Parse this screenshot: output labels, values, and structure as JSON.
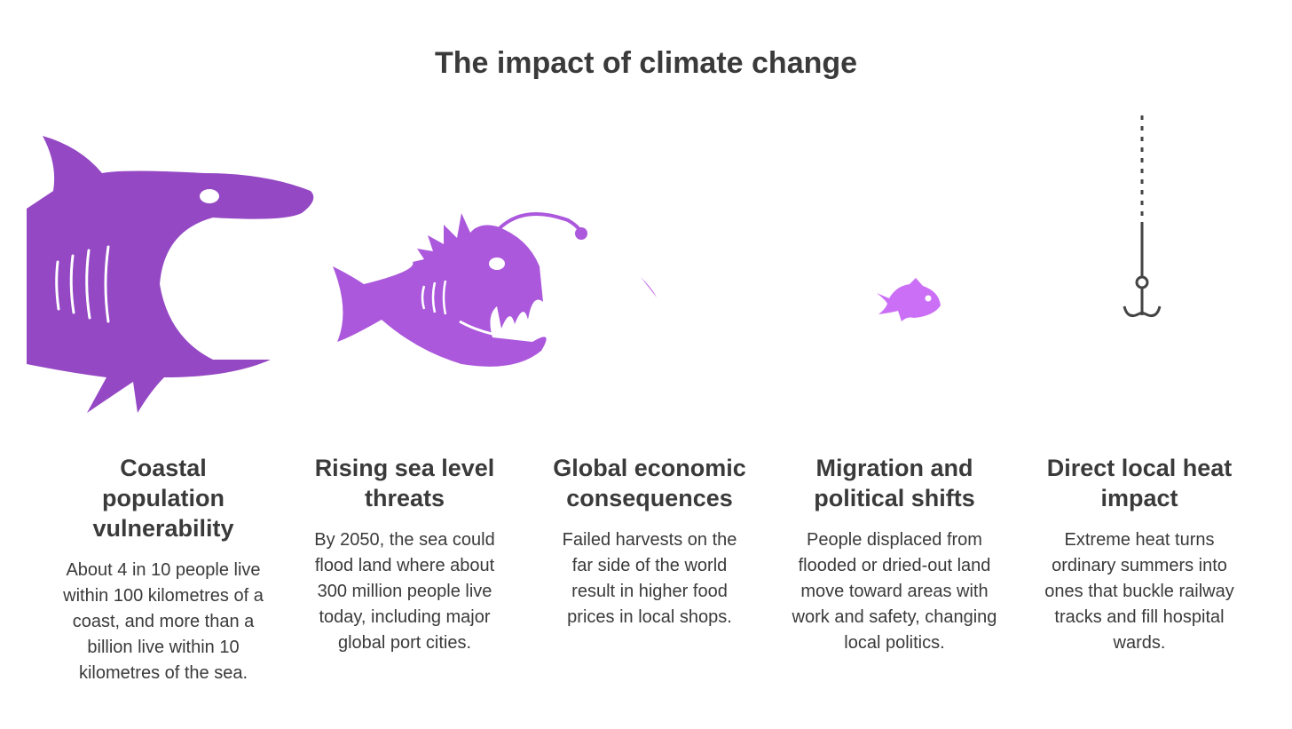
{
  "title": "The impact of climate change",
  "items": [
    {
      "heading": "Coastal population vulnerability",
      "body": "About 4 in 10 people live within 100 kilometres of a coast, and more than a billion live within 10 kilometres of the sea."
    },
    {
      "heading": "Rising sea level threats",
      "body": "By 2050, the sea could flood land where about 300 million people live today, including major global port cities."
    },
    {
      "heading": "Global economic consequences",
      "body": "Failed harvests on the far side of the world result in higher food prices in local shops."
    },
    {
      "heading": "Migration and political shifts",
      "body": "People displaced from flooded or dried-out land move toward areas with work and safety, changing local politics."
    },
    {
      "heading": "Direct local heat impact",
      "body": "Extreme heat turns ordinary summers into ones that buckle railway tracks and fill hospital wards."
    }
  ]
}
